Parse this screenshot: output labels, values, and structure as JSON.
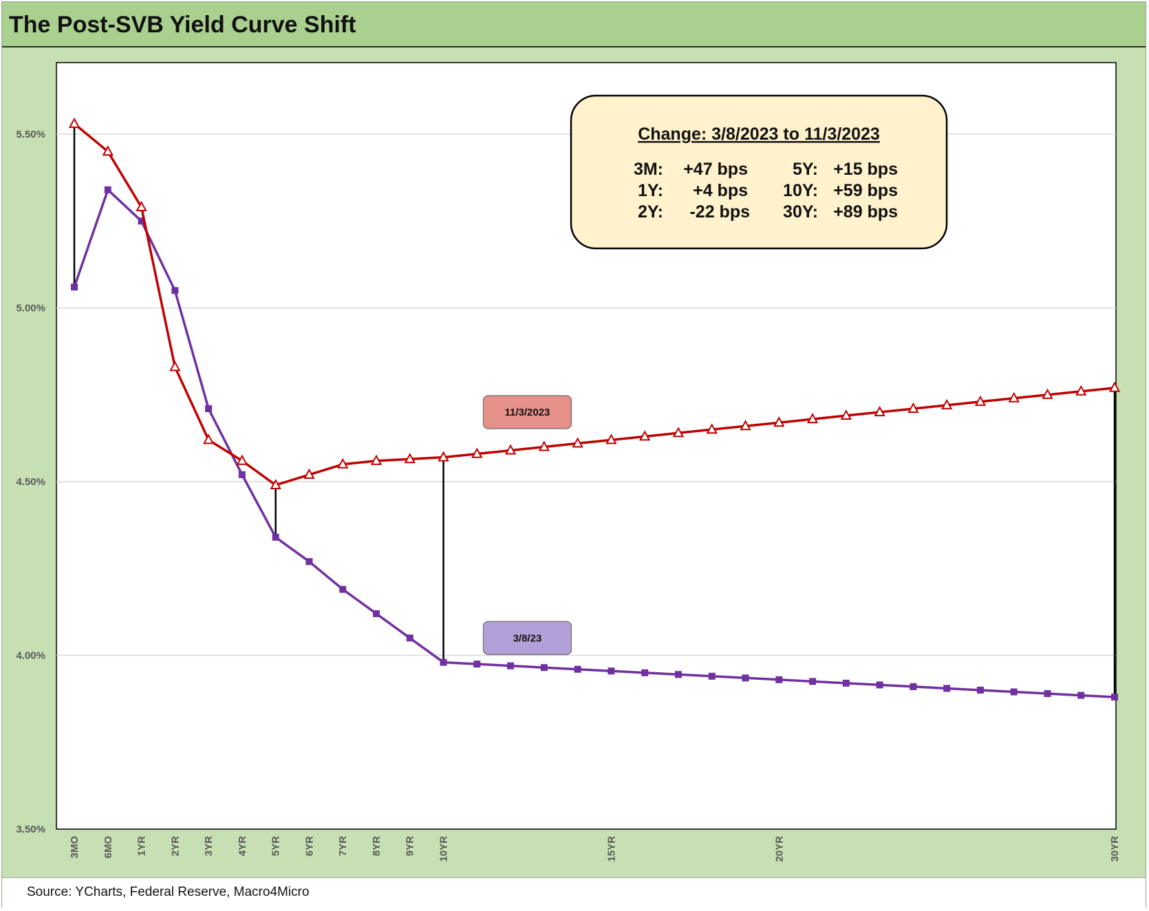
{
  "title": "The Post-SVB Yield Curve Shift",
  "source": "Source: YCharts, Federal Reserve, Macro4Micro",
  "callout": {
    "title": "Change: 3/8/2023 to 11/3/2023",
    "rows": [
      {
        "l_label": "3M:",
        "l_value": "+47 bps",
        "r_label": "5Y:",
        "r_value": "+15 bps"
      },
      {
        "l_label": "1Y:",
        "l_value": "+4 bps",
        "r_label": "10Y:",
        "r_value": "+59 bps"
      },
      {
        "l_label": "2Y:",
        "l_value": "-22 bps",
        "r_label": "30Y:",
        "r_value": "+89 bps"
      }
    ]
  },
  "colors": {
    "series_red": "#c00000",
    "series_purple": "#7030a0",
    "tag_red": "#e6908a",
    "tag_purple": "#b4a0d8",
    "callout_fill": "#fff2cc",
    "grid": "#d9d9d9",
    "connector": "#000000"
  },
  "chart_data": {
    "type": "line",
    "y_tick_labels": [
      "3.50%",
      "4.00%",
      "4.50%",
      "5.00%",
      "5.50%"
    ],
    "y_ticks": [
      3.5,
      4.0,
      4.5,
      5.0,
      5.5
    ],
    "ylim": [
      3.5,
      5.7
    ],
    "x_tick_labels": [
      "3MO",
      "6MO",
      "1YR",
      "2YR",
      "3YR",
      "4YR",
      "5YR",
      "6YR",
      "7YR",
      "8YR",
      "9YR",
      "10YR",
      "15YR",
      "20YR",
      "30YR"
    ],
    "x_tick_positions": [
      0,
      1,
      2,
      3,
      4,
      5,
      6,
      7,
      8,
      9,
      10,
      11,
      16,
      21,
      31
    ],
    "x_count": 32,
    "grid": "horizontal",
    "series": [
      {
        "name": "11/3/2023",
        "marker": "triangle",
        "values": [
          5.53,
          5.45,
          5.29,
          4.83,
          4.62,
          4.56,
          4.49,
          4.52,
          4.55,
          4.56,
          4.565,
          4.57,
          4.58,
          4.59,
          4.6,
          4.61,
          4.62,
          4.63,
          4.64,
          4.65,
          4.66,
          4.67,
          4.68,
          4.69,
          4.7,
          4.71,
          4.72,
          4.73,
          4.74,
          4.75,
          4.76,
          4.77
        ]
      },
      {
        "name": "3/8/23",
        "marker": "square",
        "values": [
          5.06,
          5.34,
          5.25,
          5.05,
          4.71,
          4.52,
          4.34,
          4.27,
          4.19,
          4.12,
          4.05,
          3.98,
          3.975,
          3.97,
          3.965,
          3.96,
          3.955,
          3.95,
          3.945,
          3.94,
          3.935,
          3.93,
          3.925,
          3.92,
          3.915,
          3.91,
          3.905,
          3.9,
          3.895,
          3.89,
          3.885,
          3.88
        ]
      }
    ],
    "connectors_at": [
      0,
      6,
      11,
      31
    ],
    "series_tags": [
      {
        "label": "11/3/2023",
        "x": 13.5,
        "y": 4.7
      },
      {
        "label": "3/8/23",
        "x": 13.5,
        "y": 4.05
      }
    ]
  }
}
